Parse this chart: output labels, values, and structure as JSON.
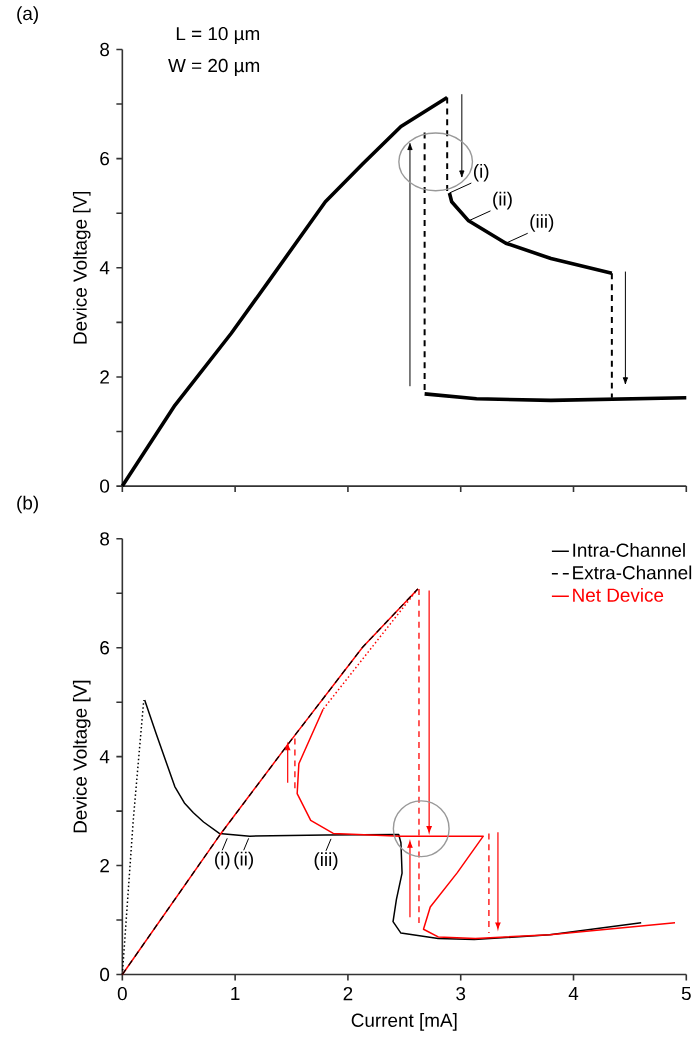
{
  "chart_data": [
    {
      "type": "line",
      "title": "(a)",
      "ylabel": "Device Voltage [V]",
      "xlim": [
        0,
        5
      ],
      "ylim": [
        0,
        8
      ],
      "xticks": [
        0,
        1,
        2,
        3,
        4,
        5
      ],
      "yticks": [
        0,
        {
          "value": 1,
          "label": null
        },
        2,
        {
          "value": 3,
          "label": null
        },
        4,
        {
          "value": 5,
          "label": null
        },
        6,
        {
          "value": 7,
          "label": null
        },
        8
      ],
      "tick_labels": "y",
      "legend": false,
      "annotations": [
        "L = 10 µm",
        "W = 20 µm",
        {
          "text": "(i)",
          "x": 2.9,
          "y": 5.37
        },
        {
          "text": "(ii)",
          "x": 3.07,
          "y": 4.86
        },
        {
          "text": "(iii)",
          "x": 3.4,
          "y": 4.45
        }
      ],
      "series": [
        {
          "color": "#000000",
          "line_style": "solid",
          "x": [
            0,
            0.466,
            0.966,
            1.3,
            1.8,
            2.13,
            2.47,
            2.88
          ],
          "values": [
            0,
            1.48,
            2.8,
            3.76,
            5.21,
            5.9,
            6.59,
            7.12
          ]
        },
        {
          "color": "#000000",
          "line_style": "solid",
          "x": [
            2.9,
            2.92,
            3.07,
            3.4,
            3.8,
            4.34
          ],
          "values": [
            5.37,
            5.21,
            4.86,
            4.45,
            4.17,
            3.9
          ]
        },
        {
          "color": "#000000",
          "line_style": "solid",
          "x": [
            2.68,
            3.14,
            3.8,
            5.0
          ],
          "values": [
            1.69,
            1.6,
            1.57,
            1.62
          ]
        },
        {
          "color": "#000000",
          "line_style": "dashed",
          "x": [
            2.68,
            2.68
          ],
          "values": [
            6.48,
            1.69
          ]
        },
        {
          "color": "#000000",
          "line_style": "dashed",
          "x": [
            2.88,
            2.88
          ],
          "values": [
            7.12,
            5.37
          ]
        },
        {
          "color": "#000000",
          "line_style": "dashed",
          "x": [
            4.34,
            4.34
          ],
          "values": [
            3.9,
            1.62
          ]
        }
      ]
    },
    {
      "type": "line",
      "title": "(b)",
      "xlabel": "Current [mA]",
      "ylabel": "Device Voltage [V]",
      "xlim": [
        0,
        5
      ],
      "ylim": [
        0,
        8
      ],
      "xticks": [
        0,
        1,
        2,
        3,
        4,
        5
      ],
      "yticks": [
        0,
        {
          "value": 1,
          "label": null
        },
        2,
        {
          "value": 3,
          "label": null
        },
        4,
        {
          "value": 5,
          "label": null
        },
        6,
        {
          "value": 7,
          "label": null
        },
        8
      ],
      "legend": "top right",
      "annotations": [
        {
          "text": "(i)",
          "x": 0.93,
          "y": 2.5
        },
        {
          "text": "(ii)",
          "x": 1.12,
          "y": 2.5
        },
        {
          "text": "(iii)",
          "x": 1.85,
          "y": 2.49
        }
      ],
      "series": [
        {
          "name": "Intra-Channel",
          "color": "#000000",
          "line_style": "solid",
          "x": [
            0.198,
            0.3,
            0.465,
            0.55,
            0.63,
            0.72,
            0.86,
            1.13,
            1.8,
            2.45,
            2.47,
            2.48,
            2.43,
            2.4,
            2.47,
            2.8,
            3.12,
            3.79,
            4.6
          ],
          "values": [
            5.04,
            4.42,
            3.45,
            3.15,
            2.97,
            2.8,
            2.59,
            2.54,
            2.56,
            2.57,
            2.42,
            1.86,
            1.38,
            0.97,
            0.76,
            0.66,
            0.64,
            0.73,
            0.95
          ]
        },
        {
          "color": "#000000",
          "line_style": "dotted",
          "x": [
            0,
            0.097,
            0.19
          ],
          "values": [
            0,
            2.84,
            5.04
          ]
        },
        {
          "name": "Extra-Channel",
          "color": "#000000",
          "line_style": "dashed",
          "x": [
            0,
            0.864,
            1.466,
            2.13,
            2.62
          ],
          "values": [
            0,
            2.56,
            4.22,
            6.01,
            7.08
          ]
        },
        {
          "name": "Net Device",
          "color": "#ff0000",
          "line_style": "solid",
          "x": [
            0,
            0.864,
            1.466,
            2.13,
            2.62
          ],
          "values": [
            0,
            2.56,
            4.22,
            6.01,
            7.08
          ]
        },
        {
          "color": "#ff0000",
          "line_style": "dotted",
          "x": [
            2.62,
            1.78
          ],
          "values": [
            7.08,
            4.87
          ]
        },
        {
          "color": "#ff0000",
          "line_style": "solid",
          "x": [
            1.78,
            1.565,
            1.55,
            1.67,
            1.87,
            2.47,
            3.2,
            2.97,
            2.73,
            2.67,
            2.8,
            3.13,
            3.79,
            4.9
          ],
          "values": [
            4.87,
            3.87,
            3.32,
            2.83,
            2.59,
            2.54,
            2.54,
            1.87,
            1.24,
            0.83,
            0.69,
            0.66,
            0.73,
            0.95
          ]
        },
        {
          "color": "#ff0000",
          "line_style": "dashed",
          "x": [
            1.53,
            1.53
          ],
          "values": [
            3.42,
            4.42
          ]
        },
        {
          "color": "#ff0000",
          "line_style": "dashed",
          "x": [
            2.63,
            2.63
          ],
          "values": [
            7.08,
            0.93
          ]
        },
        {
          "color": "#ff0000",
          "line_style": "dashed",
          "x": [
            3.25,
            3.25
          ],
          "values": [
            2.59,
            0.76
          ]
        }
      ]
    }
  ]
}
